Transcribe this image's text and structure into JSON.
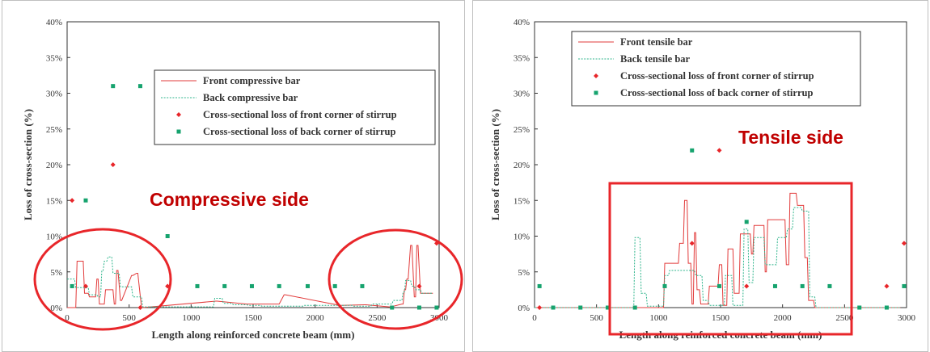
{
  "chart_data": [
    {
      "type": "line",
      "xlabel": "Length along reinforced concrete beam (mm)",
      "ylabel": "Loss of cross-section (%)",
      "xlim": [
        0,
        3000
      ],
      "ylim": [
        0,
        40
      ],
      "xticks": [
        "0",
        "500",
        "1000",
        "1500",
        "2000",
        "2500",
        "3000"
      ],
      "yticks": [
        "0%",
        "5%",
        "10%",
        "15%",
        "20%",
        "25%",
        "30%",
        "35%",
        "40%"
      ],
      "grid": false,
      "legend_position": "top-right",
      "annotation": "Compressive side",
      "colors": {
        "front_bar": "#e23b3b",
        "back_bar": "#2fb58c",
        "front_point": "#e8262a",
        "back_point": "#16a36e",
        "annotation": "#c00000"
      },
      "series": [
        {
          "name": "Front compressive bar",
          "style": "step-line",
          "x": [
            0,
            70,
            80,
            130,
            140,
            170,
            180,
            230,
            240,
            250,
            260,
            300,
            310,
            370,
            380,
            390,
            400,
            410,
            430,
            440,
            520,
            530,
            560,
            570,
            600,
            610,
            1200,
            1210,
            1450,
            1460,
            1700,
            1710,
            1750,
            1760,
            2200,
            2210,
            2400,
            2410,
            2600,
            2610,
            2700,
            2710,
            2720,
            2730,
            2740,
            2750,
            2770,
            2780,
            2800,
            2810,
            2820,
            2830,
            2850,
            2860,
            2890,
            2900,
            2950
          ],
          "y": [
            0,
            0,
            6.5,
            6.5,
            2,
            2,
            1.5,
            1.5,
            4,
            4,
            0.5,
            0.5,
            2.5,
            2.5,
            0.5,
            0.5,
            5.2,
            5.2,
            1,
            1,
            4.5,
            4.5,
            4.8,
            4.8,
            0,
            0,
            0.9,
            0.9,
            0.5,
            0.5,
            0.5,
            0.5,
            1.8,
            1.8,
            0.3,
            0.3,
            0.4,
            0.4,
            0.1,
            0.1,
            0.5,
            0.5,
            2.5,
            2.5,
            4,
            4,
            8.7,
            8.7,
            1.5,
            1.5,
            8.7,
            8.7,
            2,
            2,
            2,
            2,
            2
          ]
        },
        {
          "name": "Back compressive bar",
          "style": "step-dotted",
          "x": [
            0,
            60,
            70,
            170,
            180,
            240,
            250,
            270,
            280,
            290,
            300,
            320,
            330,
            360,
            370,
            420,
            430,
            520,
            530,
            600,
            610,
            1180,
            1190,
            1250,
            1260,
            1330,
            1340,
            1450,
            1460,
            1560,
            1570,
            1900,
            1910,
            2300,
            2310,
            2450,
            2460,
            2620,
            2630,
            2700,
            2710,
            2720,
            2730,
            2770,
            2780,
            2800,
            2810,
            2850,
            2860,
            2950
          ],
          "y": [
            4,
            4,
            2.8,
            2.8,
            1.8,
            1.8,
            1.5,
            1.5,
            5.2,
            5.2,
            6.5,
            6.5,
            7.1,
            7.1,
            4.8,
            4.8,
            2.9,
            2.9,
            1.5,
            1.5,
            0.1,
            0.1,
            1.3,
            1.3,
            0.6,
            0.6,
            0.4,
            0.4,
            0.3,
            0.3,
            0.2,
            0.2,
            0.3,
            0.3,
            0.2,
            0.2,
            0.5,
            0.5,
            1,
            1,
            2.2,
            2.2,
            3.8,
            3.8,
            3,
            3,
            2.5,
            2.5,
            2,
            2
          ]
        },
        {
          "name": "Cross-sectional loss of front corner of stirrup",
          "style": "point",
          "x": [
            40,
            150,
            370,
            590,
            810,
            2840,
            2980
          ],
          "y": [
            15,
            3,
            20,
            0,
            3,
            3,
            9
          ]
        },
        {
          "name": "Cross-sectional loss of back corner of stirrup",
          "style": "point",
          "x": [
            40,
            150,
            370,
            590,
            810,
            1050,
            1270,
            1490,
            1710,
            1940,
            2160,
            2380,
            2620,
            2840,
            2980
          ],
          "y": [
            3,
            15,
            31,
            31,
            10,
            3,
            3,
            3,
            3,
            3,
            3,
            3,
            0,
            0,
            0
          ]
        }
      ]
    },
    {
      "type": "line",
      "xlabel": "Length along reinforced concrete beam (mm)",
      "ylabel": "Loss of cross-section (%)",
      "xlim": [
        0,
        3000
      ],
      "ylim": [
        0,
        40
      ],
      "xticks": [
        "0",
        "500",
        "1000",
        "1500",
        "2000",
        "2500",
        "3000"
      ],
      "yticks": [
        "0%",
        "5%",
        "10%",
        "15%",
        "20%",
        "25%",
        "30%",
        "35%",
        "40%"
      ],
      "grid": false,
      "legend_position": "top-left",
      "annotation": "Tensile side",
      "colors": {
        "front_bar": "#e23b3b",
        "back_bar": "#2fb58c",
        "front_point": "#e8262a",
        "back_point": "#16a36e",
        "annotation": "#c00000"
      },
      "series": [
        {
          "name": "Front tensile bar",
          "style": "step-line",
          "x": [
            0,
            1040,
            1050,
            1160,
            1170,
            1200,
            1210,
            1230,
            1240,
            1260,
            1270,
            1280,
            1290,
            1300,
            1310,
            1330,
            1340,
            1400,
            1410,
            1480,
            1490,
            1510,
            1520,
            1550,
            1560,
            1600,
            1610,
            1650,
            1660,
            1740,
            1750,
            1760,
            1770,
            1850,
            1860,
            1870,
            1880,
            2020,
            2030,
            2050,
            2060,
            2110,
            2120,
            2170,
            2180,
            2200,
            2210,
            2250,
            2260,
            2950
          ],
          "y": [
            0,
            0,
            6.2,
            6.2,
            9,
            9,
            15,
            15,
            6.2,
            6.2,
            0.5,
            0.5,
            10.5,
            10.5,
            2.5,
            2.5,
            0.5,
            0.5,
            3,
            3,
            6,
            6,
            0.3,
            0.3,
            8.2,
            8.2,
            2,
            2,
            10.3,
            10.3,
            7.5,
            7.5,
            11.5,
            11.5,
            5,
            5,
            12.3,
            12.3,
            6,
            6,
            16,
            16,
            14.3,
            14.3,
            7,
            7,
            1,
            1,
            0,
            0
          ]
        },
        {
          "name": "Back tensile bar",
          "style": "step-dotted",
          "x": [
            0,
            800,
            810,
            850,
            860,
            900,
            910,
            1040,
            1050,
            1080,
            1090,
            1290,
            1300,
            1350,
            1360,
            1400,
            1410,
            1530,
            1540,
            1590,
            1600,
            1680,
            1690,
            1720,
            1730,
            1760,
            1770,
            1850,
            1860,
            1950,
            1960,
            2030,
            2040,
            2080,
            2090,
            2150,
            2160,
            2210,
            2220,
            2260,
            2270,
            2950
          ],
          "y": [
            0,
            0,
            9.8,
            9.8,
            2,
            2,
            0.2,
            0.2,
            4.5,
            4.5,
            5.2,
            5.2,
            4.5,
            4.5,
            1,
            1,
            0.3,
            0.3,
            4.5,
            4.5,
            0.3,
            0.3,
            11,
            11,
            3.5,
            3.5,
            9.8,
            9.8,
            6,
            6,
            9.8,
            9.8,
            11,
            11,
            14,
            14,
            13.5,
            13.5,
            1.5,
            1.5,
            0,
            0
          ]
        },
        {
          "name": "Cross-sectional loss of front corner of stirrup",
          "style": "point",
          "x": [
            40,
            1270,
            1490,
            1710,
            2840,
            2980
          ],
          "y": [
            0,
            9,
            22,
            3,
            3,
            9
          ]
        },
        {
          "name": "Cross-sectional loss of back corner of stirrup",
          "style": "point",
          "x": [
            40,
            150,
            370,
            590,
            810,
            1050,
            1270,
            1490,
            1710,
            1940,
            2160,
            2380,
            2620,
            2840,
            2980
          ],
          "y": [
            3,
            0,
            0,
            0,
            0,
            3,
            22,
            3,
            12,
            3,
            3,
            3,
            0,
            0,
            3
          ]
        }
      ]
    }
  ]
}
